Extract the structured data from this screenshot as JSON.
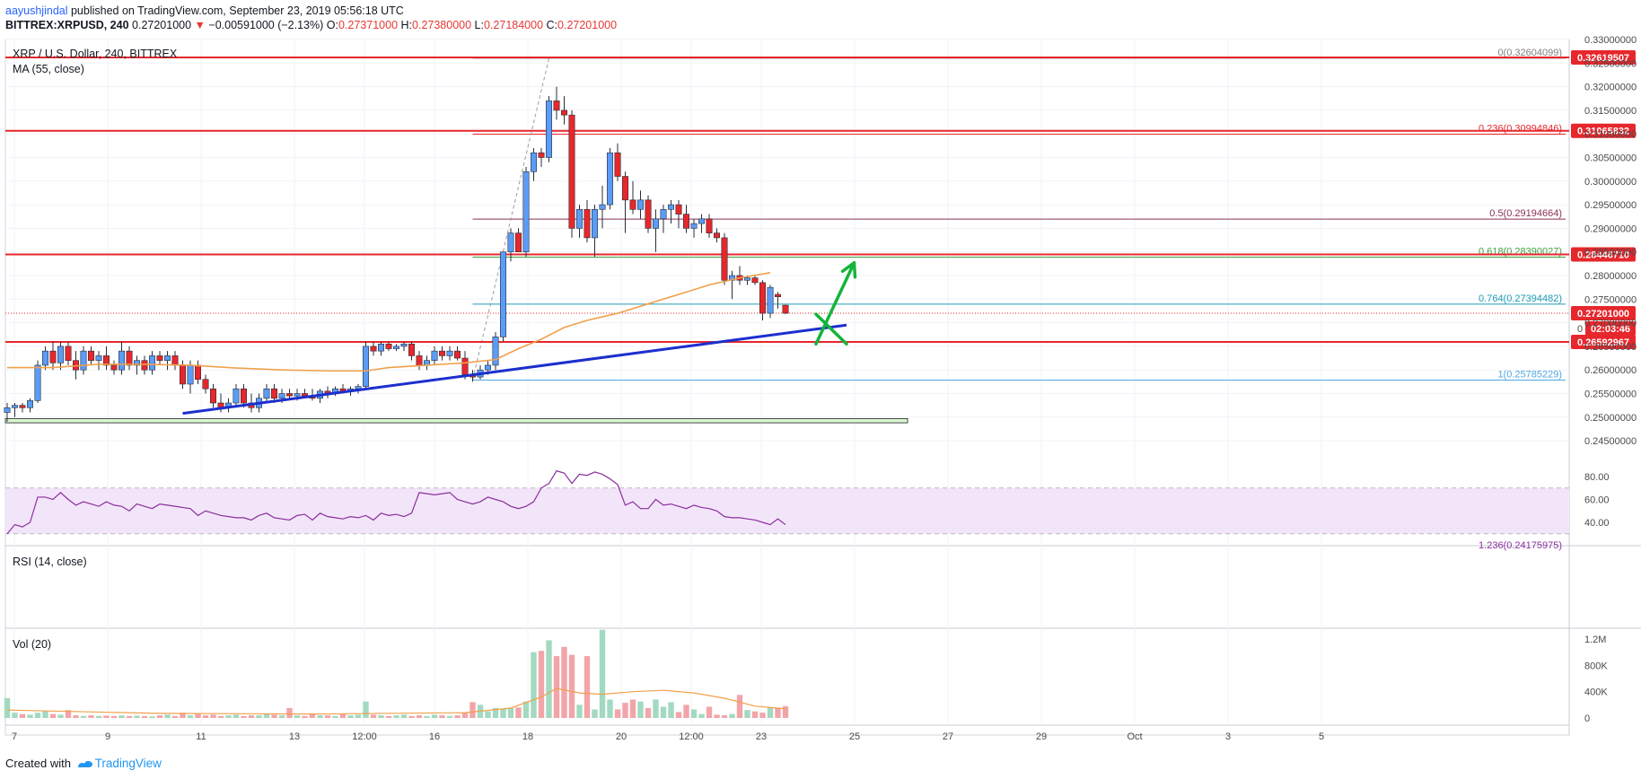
{
  "header": {
    "author": "aayushjindal",
    "published_text": "published on TradingView.com, September 23, 2019 05:56:18 UTC",
    "symbol": "BITTREX:XRPUSD, 240",
    "last": "0.27201000",
    "change_arrow": "▼",
    "change": "−0.00591000 (−2.13%)",
    "ohlc": {
      "o_label": "O:",
      "o": "0.27371000",
      "h_label": "H:",
      "h": "0.27380000",
      "l_label": "L:",
      "l": "0.27184000",
      "c_label": "C:",
      "c": "0.27201000"
    }
  },
  "legends": {
    "main_title": "XRP / U.S. Dollar, 240, BITTREX",
    "ma": "MA (55, close)",
    "rsi": "RSI (14, close)",
    "vol": "Vol (20)"
  },
  "footer": {
    "created_with": "Created with",
    "brand": "TradingView"
  },
  "colors": {
    "up": "#5b9cf6",
    "down": "#e6272c",
    "ma": "#f0a04b",
    "trend": "#1b2fce",
    "resistance": "#e6272c",
    "arrow": "#13b43a",
    "rsi": "#8a2f9d",
    "rsi_band": "#f3e5f9",
    "vol_up": "#a3d9c0",
    "vol_down": "#f2a5a8",
    "support_zone": "#d9f7d2"
  },
  "chart_data": {
    "type": "candlestick",
    "price_axis": {
      "ticks": [
        "0.33000000",
        "0.32500000",
        "0.32000000",
        "0.31500000",
        "0.31000000",
        "0.30500000",
        "0.30000000",
        "0.29500000",
        "0.29000000",
        "0.28500000",
        "0.28000000",
        "0.27500000",
        "0.27000000",
        "0.26500000",
        "0.26000000",
        "0.25500000",
        "0.25000000",
        "0.24500000"
      ],
      "tick_values": [
        0.33,
        0.325,
        0.32,
        0.315,
        0.31,
        0.305,
        0.3,
        0.295,
        0.29,
        0.285,
        0.28,
        0.275,
        0.27,
        0.265,
        0.26,
        0.255,
        0.25,
        0.245
      ]
    },
    "time_axis": {
      "labels": [
        "7",
        "9",
        "11",
        "13",
        "12:00",
        "16",
        "18",
        "20",
        "12:00",
        "23",
        "25",
        "27",
        "29",
        "Oct",
        "3",
        "5"
      ],
      "day_index": [
        7,
        9,
        11,
        13,
        14.5,
        16,
        18,
        20,
        21.5,
        23,
        25,
        27,
        29,
        31,
        33,
        35
      ]
    },
    "candles": [
      [
        0.251,
        0.253,
        0.249,
        0.252
      ],
      [
        0.252,
        0.253,
        0.25,
        0.2525
      ],
      [
        0.2525,
        0.253,
        0.251,
        0.252
      ],
      [
        0.252,
        0.254,
        0.251,
        0.2535
      ],
      [
        0.2535,
        0.262,
        0.253,
        0.261
      ],
      [
        0.261,
        0.265,
        0.26,
        0.264
      ],
      [
        0.264,
        0.266,
        0.26,
        0.2615
      ],
      [
        0.2615,
        0.266,
        0.26,
        0.265
      ],
      [
        0.265,
        0.266,
        0.261,
        0.262
      ],
      [
        0.262,
        0.264,
        0.258,
        0.26
      ],
      [
        0.26,
        0.265,
        0.259,
        0.264
      ],
      [
        0.264,
        0.265,
        0.261,
        0.262
      ],
      [
        0.262,
        0.264,
        0.26,
        0.263
      ],
      [
        0.263,
        0.265,
        0.26,
        0.261
      ],
      [
        0.261,
        0.262,
        0.259,
        0.26
      ],
      [
        0.26,
        0.266,
        0.259,
        0.264
      ],
      [
        0.264,
        0.265,
        0.26,
        0.261
      ],
      [
        0.261,
        0.263,
        0.259,
        0.262
      ],
      [
        0.262,
        0.263,
        0.259,
        0.26
      ],
      [
        0.26,
        0.264,
        0.259,
        0.263
      ],
      [
        0.263,
        0.264,
        0.261,
        0.262
      ],
      [
        0.262,
        0.264,
        0.26,
        0.263
      ],
      [
        0.263,
        0.264,
        0.26,
        0.261
      ],
      [
        0.261,
        0.262,
        0.256,
        0.257
      ],
      [
        0.257,
        0.262,
        0.255,
        0.261
      ],
      [
        0.261,
        0.262,
        0.257,
        0.258
      ],
      [
        0.258,
        0.259,
        0.255,
        0.256
      ],
      [
        0.256,
        0.257,
        0.252,
        0.253
      ],
      [
        0.253,
        0.255,
        0.251,
        0.252
      ],
      [
        0.252,
        0.254,
        0.251,
        0.253
      ],
      [
        0.253,
        0.257,
        0.252,
        0.256
      ],
      [
        0.256,
        0.257,
        0.252,
        0.253
      ],
      [
        0.253,
        0.255,
        0.251,
        0.252
      ],
      [
        0.252,
        0.255,
        0.251,
        0.254
      ],
      [
        0.254,
        0.257,
        0.253,
        0.256
      ],
      [
        0.256,
        0.257,
        0.253,
        0.254
      ],
      [
        0.254,
        0.256,
        0.253,
        0.255
      ],
      [
        0.255,
        0.256,
        0.254,
        0.2545
      ],
      [
        0.2545,
        0.256,
        0.2535,
        0.255
      ],
      [
        0.255,
        0.256,
        0.254,
        0.2545
      ],
      [
        0.2545,
        0.256,
        0.2535,
        0.254
      ],
      [
        0.254,
        0.256,
        0.253,
        0.2555
      ],
      [
        0.2555,
        0.2565,
        0.254,
        0.255
      ],
      [
        0.255,
        0.2565,
        0.2545,
        0.256
      ],
      [
        0.256,
        0.257,
        0.255,
        0.2555
      ],
      [
        0.2555,
        0.2565,
        0.2545,
        0.256
      ],
      [
        0.256,
        0.257,
        0.255,
        0.2565
      ],
      [
        0.2565,
        0.266,
        0.256,
        0.265
      ],
      [
        0.265,
        0.266,
        0.263,
        0.264
      ],
      [
        0.264,
        0.266,
        0.263,
        0.2655
      ],
      [
        0.2655,
        0.266,
        0.264,
        0.2645
      ],
      [
        0.2645,
        0.2655,
        0.264,
        0.265
      ],
      [
        0.265,
        0.266,
        0.264,
        0.2655
      ],
      [
        0.2655,
        0.266,
        0.262,
        0.263
      ],
      [
        0.263,
        0.264,
        0.26,
        0.261
      ],
      [
        0.261,
        0.263,
        0.26,
        0.262
      ],
      [
        0.262,
        0.265,
        0.261,
        0.264
      ],
      [
        0.264,
        0.265,
        0.262,
        0.263
      ],
      [
        0.263,
        0.265,
        0.262,
        0.264
      ],
      [
        0.264,
        0.265,
        0.262,
        0.2625
      ],
      [
        0.2625,
        0.264,
        0.258,
        0.259
      ],
      [
        0.259,
        0.26,
        0.2575,
        0.2585
      ],
      [
        0.2585,
        0.261,
        0.258,
        0.26
      ],
      [
        0.26,
        0.262,
        0.259,
        0.261
      ],
      [
        0.261,
        0.268,
        0.26,
        0.267
      ],
      [
        0.267,
        0.285,
        0.266,
        0.285
      ],
      [
        0.285,
        0.29,
        0.283,
        0.289
      ],
      [
        0.289,
        0.29,
        0.285,
        0.285
      ],
      [
        0.285,
        0.303,
        0.284,
        0.302
      ],
      [
        0.302,
        0.307,
        0.3,
        0.306
      ],
      [
        0.306,
        0.307,
        0.303,
        0.305
      ],
      [
        0.305,
        0.318,
        0.304,
        0.317
      ],
      [
        0.317,
        0.32,
        0.313,
        0.315
      ],
      [
        0.315,
        0.318,
        0.312,
        0.314
      ],
      [
        0.314,
        0.315,
        0.288,
        0.29
      ],
      [
        0.29,
        0.295,
        0.288,
        0.294
      ],
      [
        0.294,
        0.296,
        0.287,
        0.288
      ],
      [
        0.288,
        0.295,
        0.284,
        0.294
      ],
      [
        0.294,
        0.299,
        0.29,
        0.295
      ],
      [
        0.295,
        0.307,
        0.294,
        0.306
      ],
      [
        0.306,
        0.308,
        0.3,
        0.301
      ],
      [
        0.301,
        0.302,
        0.289,
        0.296
      ],
      [
        0.296,
        0.3,
        0.293,
        0.294
      ],
      [
        0.294,
        0.298,
        0.292,
        0.296
      ],
      [
        0.296,
        0.297,
        0.289,
        0.29
      ],
      [
        0.29,
        0.294,
        0.285,
        0.292
      ],
      [
        0.292,
        0.295,
        0.289,
        0.294
      ],
      [
        0.294,
        0.296,
        0.291,
        0.295
      ],
      [
        0.295,
        0.296,
        0.29,
        0.293
      ],
      [
        0.293,
        0.295,
        0.289,
        0.29
      ],
      [
        0.29,
        0.292,
        0.288,
        0.291
      ],
      [
        0.291,
        0.293,
        0.289,
        0.292
      ],
      [
        0.292,
        0.293,
        0.288,
        0.289
      ],
      [
        0.289,
        0.29,
        0.287,
        0.288
      ],
      [
        0.288,
        0.289,
        0.278,
        0.279
      ],
      [
        0.279,
        0.281,
        0.275,
        0.28
      ],
      [
        0.28,
        0.282,
        0.278,
        0.279
      ],
      [
        0.279,
        0.28,
        0.278,
        0.2795
      ],
      [
        0.2795,
        0.28,
        0.278,
        0.2785
      ],
      [
        0.2785,
        0.279,
        0.2705,
        0.272
      ],
      [
        0.272,
        0.278,
        0.271,
        0.2775
      ],
      [
        0.276,
        0.2765,
        0.273,
        0.2755
      ],
      [
        0.27371,
        0.2738,
        0.27184,
        0.27201
      ]
    ],
    "ma_55": [
      [
        0,
        0.2605
      ],
      [
        6,
        0.2605
      ],
      [
        12,
        0.2612
      ],
      [
        18,
        0.2612
      ],
      [
        24,
        0.261
      ],
      [
        30,
        0.2604
      ],
      [
        36,
        0.26
      ],
      [
        42,
        0.2598
      ],
      [
        47,
        0.2598
      ],
      [
        50,
        0.2605
      ],
      [
        55,
        0.261
      ],
      [
        60,
        0.2615
      ],
      [
        64,
        0.2622
      ],
      [
        67,
        0.2645
      ],
      [
        70,
        0.2665
      ],
      [
        73,
        0.269
      ],
      [
        76,
        0.2705
      ],
      [
        80,
        0.272
      ],
      [
        84,
        0.274
      ],
      [
        88,
        0.276
      ],
      [
        92,
        0.278
      ],
      [
        96,
        0.2795
      ],
      [
        100,
        0.2806
      ]
    ],
    "rsi": {
      "ticks": [
        "80.00",
        "60.00",
        "40.00"
      ],
      "tick_values": [
        80,
        60,
        40
      ],
      "upper": 70,
      "lower": 30,
      "values": [
        30,
        38,
        36,
        40,
        62,
        62,
        60,
        66,
        60,
        55,
        58,
        56,
        54,
        58,
        55,
        54,
        50,
        56,
        54,
        52,
        56,
        55,
        54,
        53,
        52,
        46,
        50,
        48,
        46,
        45,
        44,
        44,
        42,
        46,
        48,
        44,
        43,
        42,
        46,
        47,
        42,
        48,
        45,
        44,
        43,
        45,
        44,
        46,
        42,
        48,
        46,
        47,
        45,
        48,
        66,
        65,
        64,
        65,
        66,
        60,
        58,
        56,
        58,
        62,
        60,
        58,
        54,
        52,
        54,
        58,
        70,
        74,
        85,
        83,
        74,
        82,
        81,
        84,
        82,
        78,
        73,
        55,
        58,
        52,
        52,
        60,
        55,
        56,
        54,
        52,
        55,
        53,
        52,
        50,
        45,
        44,
        44,
        43,
        42,
        40,
        38,
        43,
        38
      ]
    },
    "volume": {
      "ticks": [
        "1.2M",
        "800K",
        "400K",
        "0"
      ],
      "tick_values": [
        1200000,
        800000,
        400000,
        0
      ],
      "values": [
        300000,
        80000,
        60000,
        50000,
        80000,
        100000,
        60000,
        50000,
        120000,
        40000,
        30000,
        40000,
        30000,
        35000,
        30000,
        40000,
        30000,
        35000,
        30000,
        25000,
        40000,
        50000,
        30000,
        80000,
        40000,
        60000,
        40000,
        50000,
        30000,
        40000,
        50000,
        30000,
        40000,
        40000,
        60000,
        50000,
        40000,
        150000,
        40000,
        30000,
        60000,
        40000,
        40000,
        30000,
        60000,
        40000,
        50000,
        250000,
        50000,
        40000,
        30000,
        40000,
        50000,
        30000,
        40000,
        30000,
        50000,
        40000,
        30000,
        40000,
        80000,
        240000,
        200000,
        100000,
        150000,
        140000,
        150000,
        160000,
        250000,
        1000000,
        1020000,
        1180000,
        940000,
        1080000,
        960000,
        200000,
        940000,
        130000,
        1340000,
        280000,
        130000,
        230000,
        280000,
        250000,
        150000,
        280000,
        170000,
        240000,
        90000,
        200000,
        130000,
        60000,
        170000,
        50000,
        40000,
        60000,
        350000,
        120000,
        100000,
        80000,
        160000,
        150000,
        180000
      ],
      "ma_20": [
        [
          0,
          120000
        ],
        [
          20,
          70000
        ],
        [
          40,
          60000
        ],
        [
          60,
          80000
        ],
        [
          66,
          150000
        ],
        [
          70,
          320000
        ],
        [
          72,
          450000
        ],
        [
          75,
          380000
        ],
        [
          78,
          360000
        ],
        [
          82,
          400000
        ],
        [
          86,
          420000
        ],
        [
          90,
          380000
        ],
        [
          94,
          300000
        ],
        [
          98,
          180000
        ],
        [
          102,
          140000
        ]
      ]
    },
    "resistance_lines": [
      {
        "label": "0.32619507",
        "value": 0.32619507
      },
      {
        "label": "0.31065832",
        "value": 0.31065832
      },
      {
        "label": "0.28446710",
        "value": 0.2844671
      },
      {
        "label": "0.26592967",
        "value": 0.26592967
      }
    ],
    "fib_levels": [
      {
        "ratio": "0",
        "label": "0(0.32604099)",
        "value": 0.32604099,
        "color": "#808080"
      },
      {
        "ratio": "0.236",
        "label": "0.236(0.30994846)",
        "value": 0.30994846,
        "color": "#e6272c"
      },
      {
        "ratio": "0.5",
        "label": "0.5(0.29194664)",
        "value": 0.29194664,
        "color": "#8a2f56"
      },
      {
        "ratio": "0.618",
        "label": "0.618(0.28390027)",
        "value": 0.28390027,
        "color": "#3ca23c"
      },
      {
        "ratio": "0.764",
        "label": "0.764(0.27394482)",
        "value": 0.27394482,
        "color": "#1e9bb5"
      },
      {
        "ratio": "1",
        "label": "1(0.25785229)",
        "value": 0.25785229,
        "color": "#4fa6e0"
      }
    ],
    "fib_partial_label": "1.236(0.24175975)",
    "current_price": {
      "label": "0.27201000",
      "value": 0.27201,
      "countdown": "02:03:46",
      "hidden_tick": "0"
    },
    "trendline": {
      "from": [
        23,
        0.2508
      ],
      "to": [
        110,
        0.2695
      ]
    },
    "support_zone": {
      "top": 0.2497,
      "bottom": 0.2488,
      "to_index": 118
    },
    "arrows": [
      {
        "type": "down",
        "from": [
          106,
          0.2718
        ],
        "to": [
          110,
          0.2655
        ]
      },
      {
        "type": "up",
        "from": [
          106,
          0.2655
        ],
        "to": [
          111,
          0.2827
        ]
      }
    ]
  }
}
